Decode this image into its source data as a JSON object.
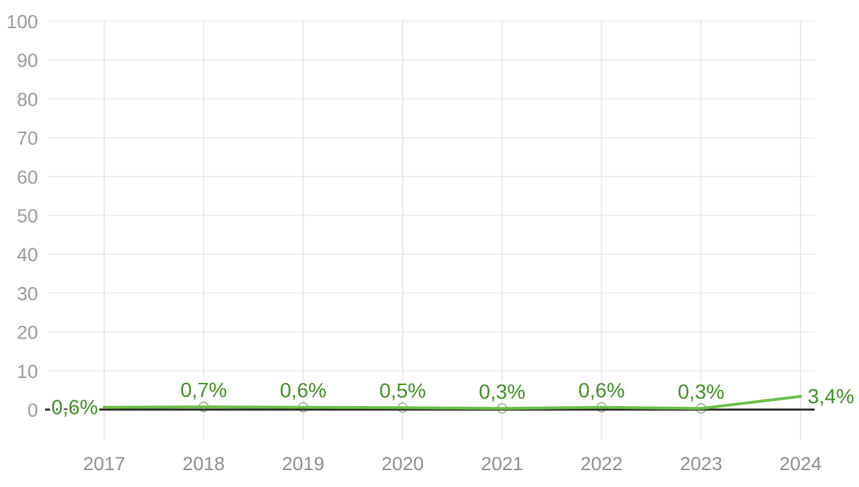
{
  "chart_data": {
    "type": "line",
    "title": "",
    "x": [
      "2017",
      "2018",
      "2019",
      "2020",
      "2021",
      "2022",
      "2023",
      "2024"
    ],
    "series": [
      {
        "name": "share-percent",
        "values": [
          0.6,
          0.7,
          0.6,
          0.5,
          0.3,
          0.6,
          0.3,
          3.4
        ],
        "point_labels": [
          "0,6%",
          "0,7%",
          "0,6%",
          "0,5%",
          "0,3%",
          "0,6%",
          "0,3%",
          "3,4%"
        ],
        "color": "#6abf47"
      }
    ],
    "ylim": [
      0,
      100
    ],
    "yticks": [
      "0",
      "10",
      "20",
      "30",
      "40",
      "50",
      "60",
      "70",
      "80",
      "90",
      "100"
    ],
    "xlabel": "",
    "ylabel": "",
    "grid": true,
    "legend": "none",
    "decimal_separator": ",",
    "label_positions": [
      "left",
      "top",
      "top",
      "top",
      "top",
      "top",
      "top",
      "right"
    ],
    "markers_visible": [
      false,
      true,
      true,
      true,
      true,
      true,
      true,
      false
    ],
    "colors": {
      "line": "#6abf47",
      "data_label": "#3f8f24",
      "marker_stroke": "#5e8f4a",
      "marker_fill": "#ffffff",
      "zero_line": "#2b2b2b",
      "grid_line": "#e7e7e7",
      "x_tick_text": "#8e8e8e",
      "y_tick_text": "#9a9a9a",
      "background": "#ffffff"
    }
  }
}
